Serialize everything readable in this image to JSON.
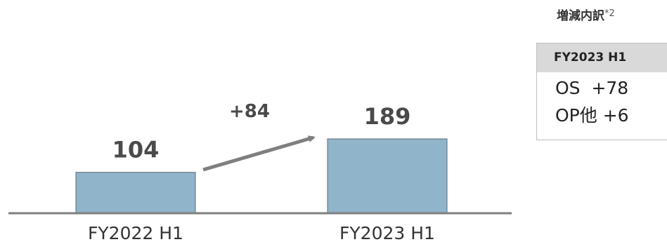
{
  "chart_data": {
    "type": "bar",
    "categories": [
      "FY2022 H1",
      "FY2023 H1"
    ],
    "values": [
      104,
      189
    ],
    "value_labels": [
      "104",
      "189"
    ],
    "change_label": "+84",
    "title": "",
    "xlabel": "",
    "ylabel": "",
    "bar_color": "#90b4ca"
  },
  "breakdown": {
    "title": "増減内訳",
    "footnote_mark": "*2",
    "period": "FY2023 H1",
    "rows": [
      {
        "label": "OS",
        "value": "+78"
      },
      {
        "label": "OP他",
        "value": "+6"
      }
    ]
  }
}
